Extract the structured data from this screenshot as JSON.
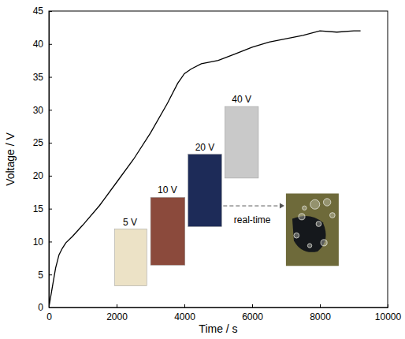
{
  "chart_data": {
    "type": "line",
    "x_label": "Time / s",
    "y_label": "Voltage / V",
    "x": [
      0,
      100,
      200,
      300,
      400,
      500,
      700,
      1000,
      1500,
      2000,
      2500,
      3000,
      3500,
      3800,
      4000,
      4200,
      4500,
      5000,
      5500,
      6000,
      6500,
      7000,
      7500,
      8000,
      8500,
      9000,
      9200
    ],
    "values": [
      0,
      3,
      6,
      8,
      9,
      9.8,
      10.8,
      12.5,
      15.5,
      19,
      22.5,
      26.5,
      31,
      34,
      35.5,
      36.2,
      37,
      37.5,
      38.5,
      39.5,
      40.3,
      40.8,
      41.3,
      42,
      41.8,
      42,
      42
    ],
    "color": "#000000",
    "xlim": [
      0,
      10000
    ],
    "xticks": [
      0,
      2000,
      4000,
      6000,
      8000,
      10000
    ],
    "ylim": [
      0,
      45
    ],
    "yticks": [
      0,
      5,
      10,
      15,
      20,
      25,
      30,
      35,
      40,
      45
    ],
    "grid": false,
    "annotations": [
      "5 V",
      "10 V",
      "20 V",
      "40 V",
      "real-time"
    ]
  }
}
